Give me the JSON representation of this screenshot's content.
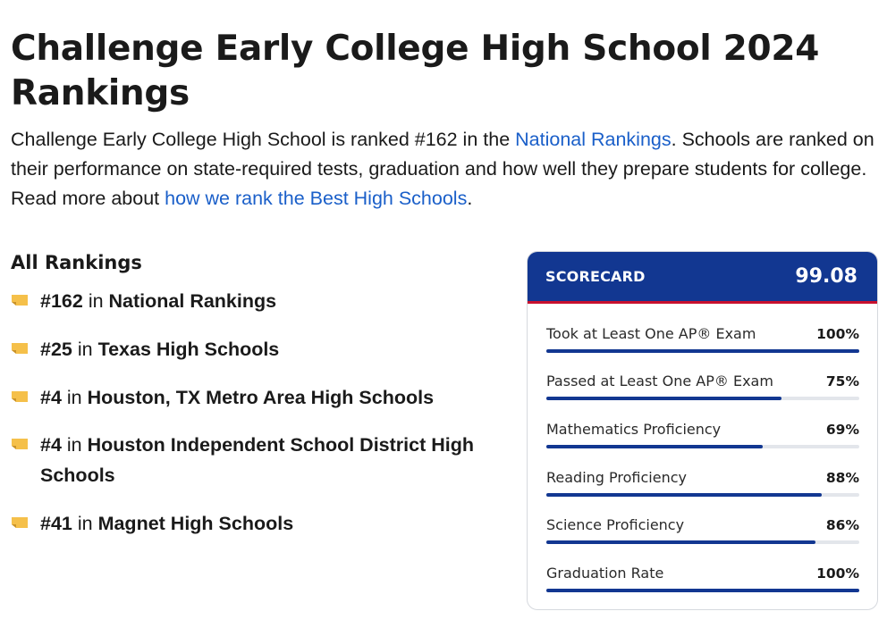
{
  "page": {
    "title": "Challenge Early College High School 2024 Rankings",
    "intro": {
      "part1": "Challenge Early College High School is ranked #162 in the ",
      "link1": "National Rankings",
      "part2": ". Schools are ranked on their performance on state-required tests, graduation and how well they prepare students for college. Read more about ",
      "link2": "how we rank the Best High Schools",
      "part3": "."
    }
  },
  "rankings": {
    "heading": "All Rankings",
    "items": [
      {
        "rank": "#162",
        "in": " in ",
        "name": "National Rankings"
      },
      {
        "rank": "#25",
        "in": " in ",
        "name": "Texas High Schools"
      },
      {
        "rank": "#4",
        "in": " in ",
        "name": "Houston, TX Metro Area High Schools"
      },
      {
        "rank": "#4",
        "in": " in ",
        "name": "Houston Independent School District High Schools"
      },
      {
        "rank": "#41",
        "in": " in ",
        "name": "Magnet High Schools"
      }
    ],
    "flag_icon": "flag-icon",
    "flag_color": "#f5c04a"
  },
  "scorecard": {
    "label": "SCORECARD",
    "score": "99.08",
    "header_color": "#123791",
    "accent_color": "#c8102e",
    "metrics": [
      {
        "label": "Took at Least One AP® Exam",
        "value": "100%",
        "fraction": 1.0
      },
      {
        "label": "Passed at Least One AP® Exam",
        "value": "75%",
        "fraction": 0.75
      },
      {
        "label": "Mathematics Proficiency",
        "value": "69%",
        "fraction": 0.69
      },
      {
        "label": "Reading Proficiency",
        "value": "88%",
        "fraction": 0.88
      },
      {
        "label": "Science Proficiency",
        "value": "86%",
        "fraction": 0.86
      },
      {
        "label": "Graduation Rate",
        "value": "100%",
        "fraction": 1.0
      }
    ]
  }
}
